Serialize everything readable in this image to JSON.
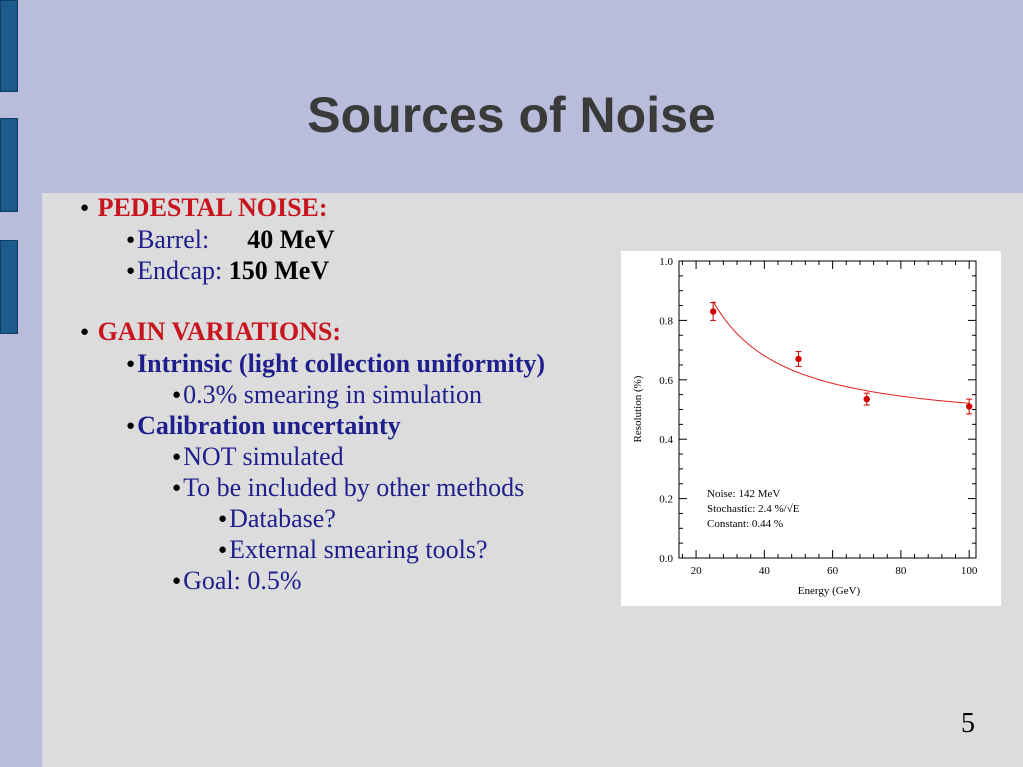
{
  "slide": {
    "title": "Sources of Noise",
    "page_number": "5",
    "bullets": {
      "pedestal": "PEDESTAL NOISE:",
      "barrel_label": "Barrel:",
      "barrel_value": "40 MeV",
      "endcap_label": "Endcap:",
      "endcap_value": "150 MeV",
      "gain": "GAIN VARIATIONS:",
      "intrinsic": "Intrinsic (light collection uniformity)",
      "smearing": "0.3% smearing in simulation",
      "calibration": "Calibration uncertainty",
      "not_simulated": "NOT simulated",
      "to_be_included": "To be included by other methods",
      "database": "Database?",
      "external": "External smearing tools?",
      "goal": "Goal: 0.5%"
    }
  },
  "chart_data": {
    "type": "scatter",
    "xlabel": "Energy (GeV)",
    "ylabel": "Resolution (%)",
    "xlim": [
      15,
      102
    ],
    "ylim": [
      0.0,
      1.0
    ],
    "x_ticks": [
      "20",
      "40",
      "60",
      "80",
      "100"
    ],
    "y_ticks": [
      "0.0",
      "0.2",
      "0.4",
      "0.6",
      "0.8",
      "1.0"
    ],
    "points": [
      {
        "x": 25,
        "y": 0.83,
        "err": 0.03
      },
      {
        "x": 50,
        "y": 0.67,
        "err": 0.025
      },
      {
        "x": 70,
        "y": 0.535,
        "err": 0.02
      },
      {
        "x": 100,
        "y": 0.51,
        "err": 0.025
      }
    ],
    "fit": {
      "noise_mev": 142,
      "stochastic_pct": 2.4,
      "constant_pct": 0.44
    },
    "annotations": [
      "Noise: 142 MeV",
      "Stochastic: 2.4 %/√E",
      "Constant: 0.44 %"
    ],
    "marker_color": "#d40000",
    "fit_color": "#e02020",
    "grid": false
  }
}
